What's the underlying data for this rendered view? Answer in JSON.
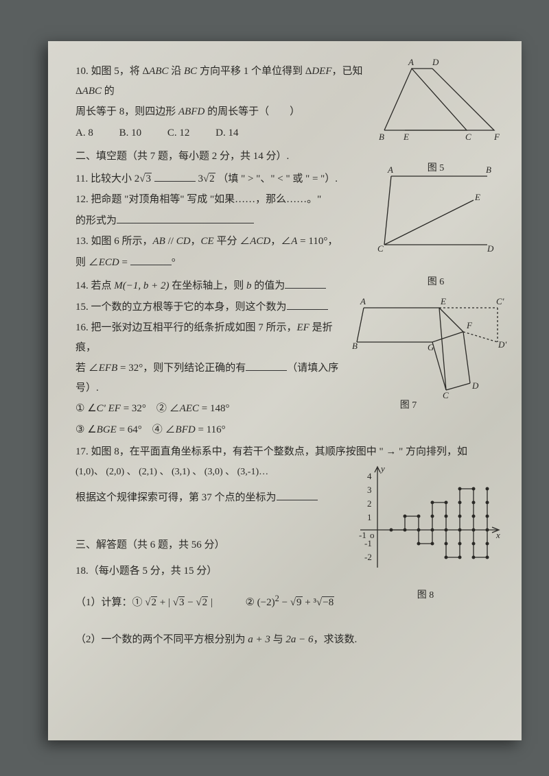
{
  "q10": {
    "text_a": "10. 如图 5，将 Δ",
    "abc": "ABC",
    "text_b": " 沿 ",
    "bc": "BC",
    "text_c": " 方向平移 1 个单位得到 Δ",
    "def": "DEF",
    "text_d": "，已知 Δ",
    "abc2": "ABC",
    "text_e": " 的",
    "line2_a": "周长等于 8，则四边形 ",
    "abfd": "ABFD",
    "line2_b": " 的周长等于（　　）",
    "optA": "A. 8",
    "optB": "B. 10",
    "optC": "C. 12",
    "optD": "D. 14"
  },
  "section2": "二、填空题（共 7 题，每小题 2 分，共 14 分）.",
  "q11": {
    "text_a": "11. 比较大小 2",
    "sqrt3": "3",
    "gap": " ",
    "text_b": "3",
    "sqrt2": "2",
    "text_c": "（填 \" > \"、\" < \" 或 \" = \"）."
  },
  "q12": {
    "line1": "12. 把命题 \"对顶角相等\" 写成 \"如果……，那么……。\"",
    "line2": "的形式为"
  },
  "q13": {
    "line1_a": "13. 如图 6 所示，",
    "ab": "AB",
    "par": " // ",
    "cd": "CD",
    "comma": "，",
    "ce": "CE",
    "line1_b": " 平分 ∠",
    "acd": "ACD",
    "comma2": "，∠",
    "a": "A",
    "eq": " = 110°，",
    "line2_a": "则 ∠",
    "ecd": "ECD",
    "line2_b": " = ",
    "deg": "°"
  },
  "q14": {
    "text_a": "14. 若点 ",
    "m": "M",
    "coord": "(−1, b + 2)",
    "text_b": " 在坐标轴上，则 ",
    "b": "b",
    "text_c": " 的值为"
  },
  "q15": "15. 一个数的立方根等于它的本身，则这个数为",
  "q16": {
    "line1_a": "16. 把一张对边互相平行的纸条折成如图 7 所示，",
    "ef": "EF",
    "line1_b": " 是折痕，",
    "line2_a": "若 ∠",
    "efb": "EFB",
    "line2_b": " = 32°，则下列结论正确的有",
    "line2_c": "（请填入序号）.",
    "opt1_a": "① ∠",
    "cpef": "C' EF",
    "opt1_b": " = 32°　② ∠",
    "aec": "AEC",
    "opt1_c": " = 148°",
    "opt3_a": "③ ∠",
    "bge": "BGE",
    "opt3_b": " = 64°　④ ∠",
    "bfd": "BFD",
    "opt3_c": " = 116°"
  },
  "q17": {
    "line1": "17. 如图 8，在平面直角坐标系中，有若干个整数点，其顺序按图中 \" → \" 方向排列，如",
    "seq": "(1,0)、 (2,0) 、 (2,1) 、 (3,1) 、 (3,0) 、 (3,-1)…",
    "line3": "根据这个规律探索可得，第 37 个点的坐标为"
  },
  "section3": "三、解答题（共 6 题，共 56 分）",
  "q18": {
    "head": "18.（每小题各 5 分，共 15 分）",
    "p1_label": "（1）计算：①",
    "p1_expr1_a": "2",
    "p1_plus": " + ",
    "p1_abs_a": "| ",
    "p1_expr1_b": "3",
    "p1_minus": " − ",
    "p1_expr1_c": "2",
    "p1_abs_b": " |",
    "p1_circ2": "②  (−2)",
    "p1_sq": "2",
    "p1_m": " − ",
    "p1_s9": "9",
    "p1_p": " + ",
    "p1_cbrt": "³√",
    "p1_neg8": "−8",
    "p2_a": "（2）一个数的两个不同平方根分别为 ",
    "p2_r1": "a + 3",
    "p2_and": " 与 ",
    "p2_r2": "2a − 6",
    "p2_b": "，求该数."
  },
  "fig5": {
    "label": "图 5",
    "A": "A",
    "D": "D",
    "B": "B",
    "E": "E",
    "C": "C",
    "F": "F"
  },
  "fig6": {
    "label": "图 6",
    "A": "A",
    "B": "B",
    "C": "C",
    "D": "D",
    "E": "E"
  },
  "fig7": {
    "label": "图 7",
    "A": "A",
    "B": "B",
    "C": "C",
    "D": "D",
    "E": "E",
    "F": "F",
    "G": "G",
    "Cp": "C'",
    "Dp": "D'"
  },
  "fig8": {
    "label": "图 8",
    "y": "y",
    "x": "x",
    "o": "o",
    "yticks": [
      "4",
      "3",
      "2",
      "1",
      "-1",
      "-2"
    ],
    "xtick": "-1"
  }
}
